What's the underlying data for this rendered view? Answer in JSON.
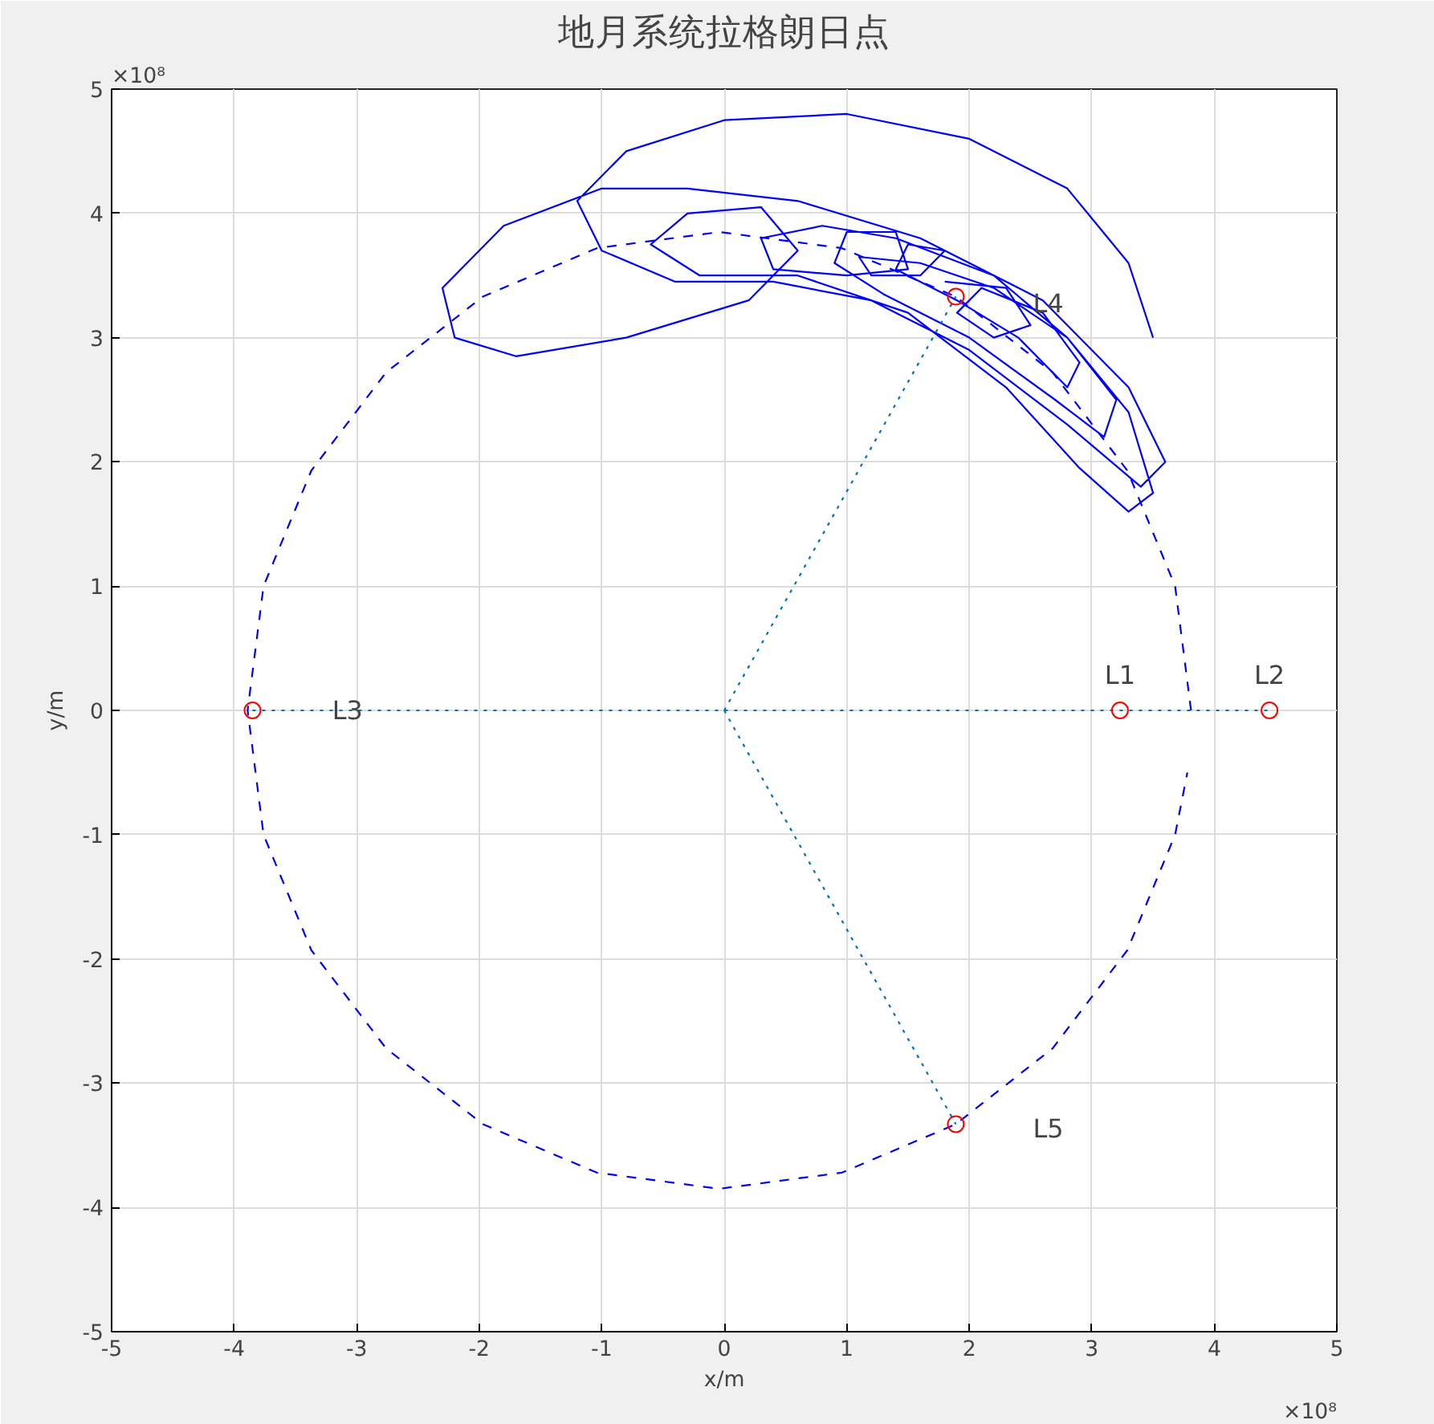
{
  "chart_data": {
    "type": "line",
    "title": "地月系统拉格朗日点",
    "xlabel": "x/m",
    "ylabel": "y/m",
    "xlim": [
      -5,
      5
    ],
    "ylim": [
      -5,
      5
    ],
    "xticks": [
      -5,
      -4,
      -3,
      -2,
      -1,
      0,
      1,
      2,
      3,
      4,
      5
    ],
    "yticks": [
      -5,
      -4,
      -3,
      -2,
      -1,
      0,
      1,
      2,
      3,
      4,
      5
    ],
    "grid": true,
    "series": [
      {
        "color": "#0000ff",
        "line_style": "solid",
        "x": [
          3.5,
          3.3,
          2.8,
          2.0,
          1.0,
          0.0,
          -0.8,
          -1.2,
          -1.0,
          -0.4,
          0.4,
          1.2,
          2.0,
          2.8,
          3.4,
          3.6,
          3.3,
          2.6,
          1.6,
          0.6,
          -0.3,
          -1.0,
          -1.8,
          -2.3,
          -2.2,
          -1.7,
          -0.8,
          0.2,
          0.6,
          0.3,
          -0.3,
          -0.6,
          -0.2,
          0.6,
          1.5,
          2.3,
          2.9,
          3.3,
          3.5,
          3.3,
          2.8,
          2.2,
          1.4,
          0.8,
          0.3,
          0.4,
          1.0,
          1.5,
          1.4,
          1.0,
          0.9,
          1.3,
          2.0,
          2.7,
          3.1,
          3.2,
          2.8,
          2.2,
          1.6,
          1.1,
          1.2,
          1.6,
          1.8,
          1.5,
          1.4,
          1.9,
          2.4,
          2.8,
          2.9,
          2.6,
          2.1,
          1.9,
          2.2,
          2.5,
          2.3,
          1.8
        ],
        "values": [
          3.0,
          3.6,
          4.2,
          4.6,
          4.8,
          4.75,
          4.5,
          4.1,
          3.7,
          3.45,
          3.45,
          3.3,
          2.9,
          2.3,
          1.8,
          2.0,
          2.6,
          3.3,
          3.8,
          4.1,
          4.2,
          4.2,
          3.9,
          3.4,
          3.0,
          2.85,
          3.0,
          3.3,
          3.7,
          4.05,
          4.0,
          3.75,
          3.5,
          3.5,
          3.2,
          2.6,
          1.95,
          1.6,
          1.75,
          2.4,
          3.0,
          3.5,
          3.8,
          3.9,
          3.8,
          3.55,
          3.5,
          3.55,
          3.85,
          3.85,
          3.6,
          3.35,
          3.0,
          2.5,
          2.2,
          2.5,
          3.0,
          3.4,
          3.6,
          3.65,
          3.5,
          3.5,
          3.7,
          3.75,
          3.55,
          3.3,
          3.0,
          2.6,
          2.8,
          3.2,
          3.4,
          3.2,
          3.0,
          3.1,
          3.4,
          3.45
        ]
      },
      {
        "color": "#0000ff",
        "line_style": "dashed",
        "x": [
          3.81,
          3.68,
          3.29,
          2.68,
          1.89,
          0.96,
          -0.04,
          -1.04,
          -1.97,
          -2.76,
          -3.37,
          -3.76,
          -3.89,
          -3.76,
          -3.37,
          -2.76,
          -1.97,
          -1.04,
          -0.04,
          0.96,
          1.89,
          2.68,
          3.29,
          3.68,
          3.78
        ],
        "values": [
          0,
          1.0,
          1.93,
          2.72,
          3.33,
          3.72,
          3.85,
          3.72,
          3.33,
          2.72,
          1.93,
          1.0,
          0,
          -1.0,
          -1.93,
          -2.72,
          -3.33,
          -3.72,
          -3.85,
          -3.72,
          -3.33,
          -2.72,
          -1.93,
          -1.0,
          -0.5
        ]
      },
      {
        "color": "#0072bd",
        "line_style": "dotted",
        "x": [
          -3.85,
          4.45
        ],
        "values": [
          0,
          0
        ]
      },
      {
        "color": "#0072bd",
        "line_style": "dotted",
        "x": [
          0,
          1.89
        ],
        "values": [
          0,
          3.33
        ]
      },
      {
        "color": "#0072bd",
        "line_style": "dotted",
        "x": [
          0,
          1.89
        ],
        "values": [
          0,
          -3.33
        ]
      },
      {
        "type": "scatter",
        "color": "#ff0000",
        "marker": "circle",
        "x": [
          3.23,
          4.45,
          -3.85,
          1.89,
          1.89
        ],
        "values": [
          0,
          0,
          0,
          3.33,
          -3.33
        ]
      }
    ],
    "annotations": [
      {
        "text": "L1",
        "x": 3.23,
        "y": 0
      },
      {
        "text": "L2",
        "x": 4.45,
        "y": 0
      },
      {
        "text": "L3",
        "x": -3.2,
        "y": 0
      },
      {
        "text": "L4",
        "x": 1.89,
        "y": 3.33
      },
      {
        "text": "L5",
        "x": 1.89,
        "y": -3.33
      },
      "×10⁸",
      "×10⁸"
    ]
  }
}
